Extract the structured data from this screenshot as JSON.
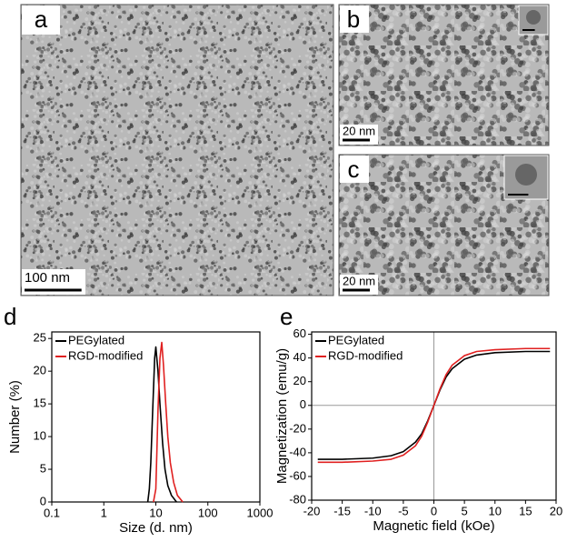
{
  "panels": {
    "a": {
      "label": "a",
      "scale_bar": "100 nm"
    },
    "b": {
      "label": "b",
      "scale_bar": "20 nm"
    },
    "c": {
      "label": "c",
      "scale_bar": "20 nm"
    },
    "d": {
      "label": "d"
    },
    "e": {
      "label": "e"
    }
  },
  "chart_data": [
    {
      "type": "line",
      "x_label": "Size (d. nm)",
      "y_label": "Number (%)",
      "xscale": "log",
      "xlim": [
        0.1,
        1000
      ],
      "xticks": [
        0.1,
        1,
        10,
        100,
        1000
      ],
      "ylim": [
        0,
        26
      ],
      "yticks": [
        0,
        5,
        10,
        15,
        20,
        25
      ],
      "legend": "upper left",
      "series": [
        {
          "name": "PEGylated",
          "color": "#000000",
          "x": [
            7,
            7.5,
            8,
            8.7,
            9.5,
            10,
            11,
            12,
            13.5,
            15,
            17,
            20,
            25
          ],
          "values": [
            0,
            2,
            6,
            14,
            22,
            23.7,
            20,
            15,
            9,
            5,
            2.5,
            1,
            0
          ]
        },
        {
          "name": "RGD-modified",
          "color": "#e02020",
          "x": [
            9,
            10,
            10.5,
            11,
            12,
            13,
            14,
            15.5,
            17,
            19,
            22,
            26,
            33
          ],
          "values": [
            0,
            2,
            8,
            14,
            22,
            24.4,
            21,
            15,
            10,
            6,
            3,
            1,
            0
          ]
        }
      ]
    },
    {
      "type": "line",
      "x_label": "Magnetic field (kOe)",
      "y_label": "Magnetization (emu/g)",
      "xlim": [
        -20,
        20
      ],
      "xticks": [
        -20,
        -15,
        -10,
        -5,
        0,
        5,
        10,
        15,
        20
      ],
      "ylim": [
        -80,
        62
      ],
      "yticks": [
        -80,
        -60,
        -40,
        -20,
        0,
        20,
        40,
        60
      ],
      "zero_lines": true,
      "legend": "upper left",
      "series": [
        {
          "name": "PEGylated",
          "color": "#000000",
          "x": [
            -19,
            -15,
            -10,
            -7,
            -5,
            -3,
            -2,
            -1,
            0,
            1,
            2,
            3,
            5,
            7,
            10,
            15,
            19
          ],
          "values": [
            -45.5,
            -45.5,
            -44.5,
            -42.5,
            -39,
            -31,
            -24,
            -13,
            0,
            13,
            24,
            31,
            39,
            42.5,
            44.5,
            45.5,
            45.5
          ]
        },
        {
          "name": "RGD-modified",
          "color": "#e02020",
          "x": [
            -19,
            -15,
            -10,
            -7,
            -5,
            -3,
            -2,
            -1,
            0,
            1,
            2,
            3,
            5,
            7,
            10,
            15,
            19
          ],
          "values": [
            -48,
            -48,
            -47,
            -45.5,
            -42,
            -34,
            -26,
            -14,
            0,
            14,
            26,
            34,
            42,
            45.5,
            47,
            48,
            48
          ]
        }
      ]
    }
  ]
}
